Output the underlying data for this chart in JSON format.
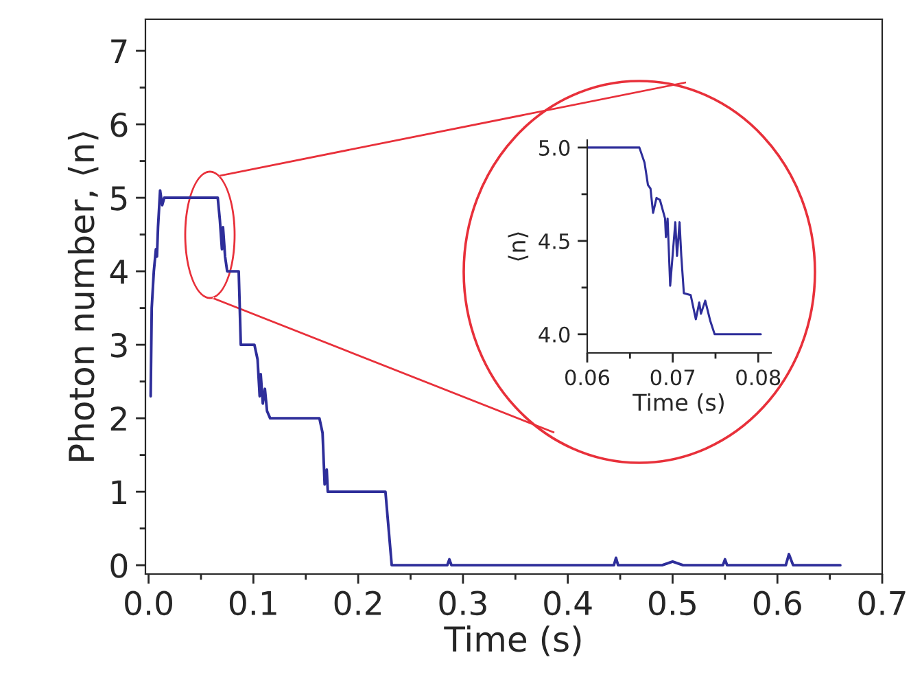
{
  "chart_data": [
    {
      "type": "line",
      "xlabel": "Time (s)",
      "ylabel": "Photon number, ⟨n⟩",
      "xlim": [
        -0.003,
        0.7
      ],
      "ylim": [
        -0.12,
        7.43
      ],
      "xticks": [
        {
          "value": 0.0,
          "label": "0.0"
        },
        {
          "value": 0.05,
          "label": null
        },
        0.1,
        {
          "value": 0.15,
          "label": null
        },
        0.2,
        {
          "value": 0.25,
          "label": null
        },
        0.3,
        {
          "value": 0.35,
          "label": null
        },
        0.4,
        {
          "value": 0.45,
          "label": null
        },
        0.5,
        {
          "value": 0.55,
          "label": null
        },
        0.6,
        {
          "value": 0.65,
          "label": null
        },
        0.7
      ],
      "yticks": [
        0,
        {
          "value": 0.5,
          "label": null
        },
        1,
        {
          "value": 1.5,
          "label": null
        },
        2,
        {
          "value": 2.5,
          "label": null
        },
        3,
        {
          "value": 3.5,
          "label": null
        },
        4,
        {
          "value": 4.5,
          "label": null
        },
        5,
        {
          "value": 5.5,
          "label": null
        },
        6,
        {
          "value": 6.5,
          "label": null
        },
        7
      ],
      "grid": false,
      "legend": false,
      "marker": "none",
      "line_style": "solid",
      "series": [
        {
          "color": "#2e2e9a",
          "x": [
            0.002,
            0.003,
            0.005,
            0.007,
            0.008,
            0.009,
            0.011,
            0.013,
            0.015,
            0.066,
            0.068,
            0.07,
            0.071,
            0.073,
            0.075,
            0.086,
            0.088,
            0.101,
            0.104,
            0.106,
            0.107,
            0.109,
            0.111,
            0.113,
            0.116,
            0.163,
            0.166,
            0.168,
            0.17,
            0.171,
            0.226,
            0.232,
            0.285,
            0.287,
            0.289,
            0.444,
            0.446,
            0.448,
            0.49,
            0.5,
            0.51,
            0.548,
            0.55,
            0.552,
            0.608,
            0.611,
            0.615,
            0.66
          ],
          "values": [
            2.3,
            3.5,
            4.0,
            4.3,
            4.2,
            4.6,
            5.1,
            4.9,
            5.0,
            5.0,
            4.7,
            4.3,
            4.6,
            4.2,
            4.0,
            4.0,
            3.0,
            3.0,
            2.8,
            2.3,
            2.6,
            2.2,
            2.4,
            2.1,
            2.0,
            2.0,
            1.8,
            1.1,
            1.3,
            1.0,
            1.0,
            0.0,
            0.0,
            0.08,
            0.0,
            0.0,
            0.1,
            0.0,
            0.0,
            0.05,
            0.0,
            0.0,
            0.08,
            0.0,
            0.0,
            0.15,
            0.0,
            0.0
          ]
        }
      ]
    },
    {
      "type": "line",
      "xlabel": "Time (s)",
      "ylabel": "⟨n⟩",
      "xlim": [
        0.06,
        0.0815
      ],
      "ylim": [
        3.9,
        5.04
      ],
      "xticks": [
        0.06,
        {
          "value": 0.065,
          "label": null
        },
        0.07,
        {
          "value": 0.075,
          "label": null
        },
        0.08
      ],
      "yticks": [
        {
          "value": 4.0,
          "label": "4.0"
        },
        {
          "value": 4.25,
          "label": null
        },
        4.5,
        {
          "value": 4.75,
          "label": null
        },
        {
          "value": 5.0,
          "label": "5.0"
        }
      ],
      "grid": false,
      "legend": false,
      "marker": "none",
      "line_style": "solid",
      "series": [
        {
          "color": "#2e2e9a",
          "x": [
            0.06,
            0.0661,
            0.0667,
            0.0671,
            0.0674,
            0.0677,
            0.0681,
            0.0685,
            0.0691,
            0.0692,
            0.0694,
            0.0697,
            0.0703,
            0.0705,
            0.0708,
            0.071,
            0.0713,
            0.0721,
            0.0727,
            0.0731,
            0.0733,
            0.0738,
            0.0744,
            0.0749,
            0.0803
          ],
          "values": [
            5.0,
            5.0,
            4.92,
            4.8,
            4.78,
            4.65,
            4.73,
            4.72,
            4.62,
            4.52,
            4.62,
            4.26,
            4.6,
            4.42,
            4.6,
            4.42,
            4.22,
            4.21,
            4.08,
            4.17,
            4.11,
            4.18,
            4.07,
            4.0,
            4.0
          ]
        }
      ]
    }
  ]
}
